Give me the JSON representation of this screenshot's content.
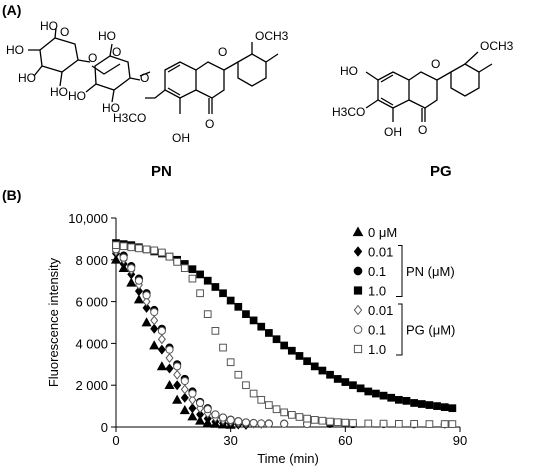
{
  "panels": {
    "a": "(A)",
    "b": "(B)"
  },
  "molecules": {
    "pn": {
      "name": "PN",
      "atoms": {
        "och3": "OCH3",
        "h3co": "H3CO",
        "oh": "OH",
        "o": "O",
        "ho1": "HO",
        "ho2": "HO",
        "ho3": "HO",
        "ho4": "HO",
        "ho5": "HO",
        "ho6": "HO",
        "ho7": "HO",
        "o_gly1": "O",
        "o_gly2": "O",
        "o_ring1": "O",
        "o_ring2": "O",
        "o_ring3": "O"
      }
    },
    "pg": {
      "name": "PG",
      "atoms": {
        "och3": "OCH3",
        "h3co": "H3CO",
        "oh": "OH",
        "ho": "HO",
        "o": "O",
        "o_ring": "O"
      }
    }
  },
  "chart_data": {
    "type": "scatter",
    "title": "",
    "xlabel": "Time (min)",
    "ylabel": "Fluorescence intensity",
    "xlim": [
      0,
      90
    ],
    "ylim": [
      0,
      10000
    ],
    "x_ticks": [
      "0",
      "30",
      "60",
      "90"
    ],
    "y_ticks": [
      "0",
      "2 000",
      "4 000",
      "6 000",
      "8 000",
      "10,000"
    ],
    "legend": {
      "placement": "top-right",
      "entries": [
        "0 μM",
        "0.01",
        "0.1",
        "1.0",
        "0.01",
        "0.1",
        "1.0"
      ],
      "group_labels": [
        "PN (μM)",
        "PG (μM)"
      ]
    },
    "series": [
      {
        "name": "0 μM",
        "marker": "triangle-filled",
        "x": [
          0,
          2,
          4,
          6,
          8,
          10,
          12,
          14,
          16,
          18,
          20,
          22,
          24,
          26,
          28,
          30
        ],
        "y": [
          8000,
          7600,
          6900,
          6100,
          5000,
          3900,
          2900,
          2000,
          1300,
          800,
          500,
          300,
          200,
          150,
          120,
          100
        ]
      },
      {
        "name": "PN 0.01",
        "marker": "diamond-filled",
        "x": [
          0,
          2,
          4,
          6,
          8,
          10,
          12,
          14,
          16,
          18,
          20,
          22,
          24,
          26,
          28,
          30,
          32,
          34
        ],
        "y": [
          8300,
          7800,
          7300,
          6500,
          5700,
          4700,
          3700,
          2800,
          2000,
          1400,
          900,
          600,
          400,
          250,
          180,
          150,
          120,
          100
        ]
      },
      {
        "name": "PN 0.1",
        "marker": "circle-filled",
        "x": [
          0,
          2,
          4,
          6,
          8,
          10,
          12,
          14,
          16,
          18,
          20,
          22,
          24,
          26,
          28,
          30,
          32,
          34,
          36,
          40,
          44,
          50,
          56,
          62,
          70,
          78,
          86
        ],
        "y": [
          8600,
          8200,
          7700,
          7100,
          6400,
          5600,
          4700,
          3800,
          3000,
          2300,
          1700,
          1200,
          900,
          600,
          450,
          350,
          280,
          220,
          190,
          170,
          160,
          150,
          150,
          140,
          140,
          130,
          130
        ]
      },
      {
        "name": "PN 1.0",
        "marker": "square-filled",
        "x": [
          0,
          2,
          4,
          6,
          8,
          10,
          12,
          14,
          16,
          18,
          20,
          22,
          24,
          26,
          28,
          30,
          32,
          34,
          36,
          38,
          40,
          42,
          44,
          46,
          48,
          50,
          52,
          54,
          56,
          58,
          60,
          62,
          64,
          66,
          68,
          70,
          72,
          74,
          76,
          78,
          80,
          82,
          84,
          86,
          88
        ],
        "y": [
          8800,
          8750,
          8700,
          8600,
          8500,
          8400,
          8300,
          8150,
          8000,
          7800,
          7550,
          7300,
          7000,
          6700,
          6400,
          6050,
          5750,
          5400,
          5100,
          4800,
          4500,
          4200,
          3900,
          3650,
          3400,
          3150,
          2900,
          2700,
          2500,
          2300,
          2150,
          2000,
          1850,
          1700,
          1600,
          1500,
          1400,
          1300,
          1250,
          1150,
          1100,
          1050,
          1000,
          950,
          900
        ]
      },
      {
        "name": "PG 0.01",
        "marker": "diamond-open",
        "x": [
          0,
          2,
          4,
          6,
          8,
          10,
          12,
          14,
          16,
          18,
          20,
          22,
          24,
          26,
          28,
          30,
          32,
          34,
          36,
          38
        ],
        "y": [
          8400,
          8000,
          7500,
          6800,
          6000,
          5100,
          4200,
          3300,
          2500,
          1800,
          1300,
          900,
          650,
          450,
          330,
          260,
          210,
          180,
          160,
          150
        ]
      },
      {
        "name": "PG 0.1",
        "marker": "circle-open",
        "x": [
          0,
          2,
          4,
          6,
          8,
          10,
          12,
          14,
          16,
          18,
          20,
          22,
          24,
          26,
          28,
          30,
          32,
          34,
          36,
          38,
          40,
          44,
          50
        ],
        "y": [
          8500,
          8100,
          7600,
          7000,
          6300,
          5500,
          4600,
          3700,
          2900,
          2200,
          1600,
          1150,
          850,
          600,
          450,
          340,
          270,
          220,
          190,
          170,
          160,
          150,
          140
        ]
      },
      {
        "name": "PG 1.0",
        "marker": "square-open",
        "x": [
          0,
          2,
          4,
          6,
          8,
          10,
          12,
          14,
          16,
          18,
          20,
          22,
          24,
          26,
          28,
          30,
          32,
          34,
          36,
          38,
          40,
          42,
          44,
          46,
          48,
          50,
          52,
          54,
          56,
          58,
          60,
          62,
          66,
          70,
          74,
          78,
          82,
          86,
          88
        ],
        "y": [
          8700,
          8650,
          8600,
          8550,
          8500,
          8450,
          8350,
          8150,
          7900,
          7600,
          7100,
          6400,
          5400,
          4600,
          3800,
          3100,
          2500,
          2000,
          1600,
          1300,
          1050,
          850,
          700,
          580,
          480,
          400,
          340,
          300,
          260,
          230,
          210,
          190,
          170,
          160,
          150,
          150,
          140,
          140,
          140
        ]
      }
    ]
  }
}
